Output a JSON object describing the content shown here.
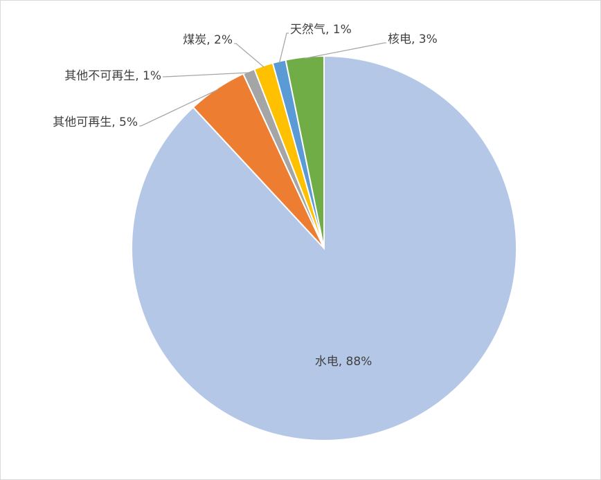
{
  "chart_data": {
    "type": "pie",
    "start_angle_deg": 0,
    "direction": "clockwise",
    "slices": [
      {
        "name": "水电",
        "value": 88.1,
        "label": "水电, 88%",
        "color": "#b4c7e7"
      },
      {
        "name": "其他可再生",
        "value": 5.0,
        "label": "其他可再生, 5%",
        "color": "#ed7d31"
      },
      {
        "name": "其他不可再生",
        "value": 1.0,
        "label": "其他不可再生, 1%",
        "color": "#a5a5a5"
      },
      {
        "name": "煤炭",
        "value": 1.6,
        "label": "煤炭, 2%",
        "color": "#ffc000"
      },
      {
        "name": "天然气",
        "value": 1.1,
        "label": "天然气, 1%",
        "color": "#5b9bd5"
      },
      {
        "name": "核电",
        "value": 3.2,
        "label": "核电, 3%",
        "color": "#70ad47"
      }
    ]
  }
}
